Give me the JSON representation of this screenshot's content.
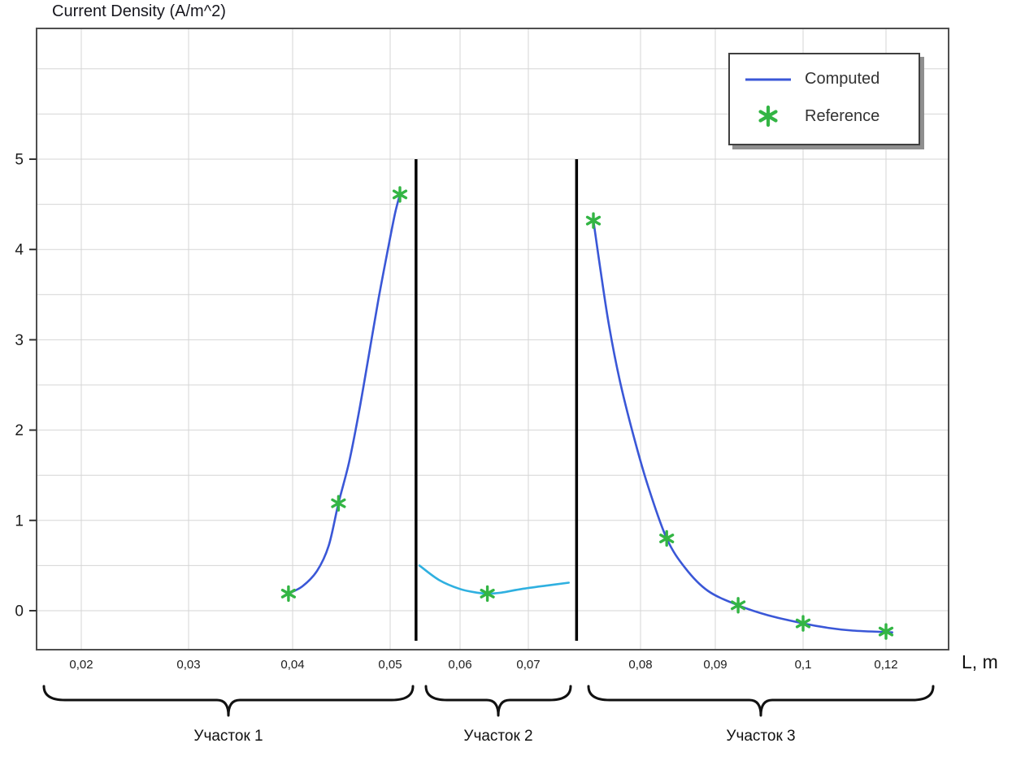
{
  "chart_data": {
    "type": "line",
    "title": "Current Density (A/m^2)",
    "xlabel": "L, m",
    "ylabel": "",
    "grid": true,
    "legend_position": "top-right",
    "legend_entries": [
      "Computed",
      "Reference"
    ],
    "y_ticks": [
      0,
      1,
      2,
      3,
      4,
      5
    ],
    "ylim": [
      -0.43,
      6.45
    ],
    "x_tick_labels": [
      "0,02",
      "0,03",
      "0,04",
      "0,05",
      "0,06",
      "0,07",
      "0,08",
      "0,09",
      "0,1",
      "0,12"
    ],
    "x_tick_values": [
      0.02,
      0.03,
      0.04,
      0.05,
      0.06,
      0.07,
      0.08,
      0.09,
      0.1,
      0.12
    ],
    "section_dividers_x": [
      0.0537,
      0.0743
    ],
    "sections": [
      {
        "label": "Участок 1"
      },
      {
        "label": "Участок 2"
      },
      {
        "label": "Участок 3"
      }
    ],
    "series": [
      {
        "name": "Computed",
        "section": "Участок 1",
        "type": "line",
        "color": "#3a57d7",
        "points": [
          [
            0.0396,
            0.19
          ],
          [
            0.041,
            0.27
          ],
          [
            0.0425,
            0.44
          ],
          [
            0.0437,
            0.72
          ],
          [
            0.0447,
            1.19
          ],
          [
            0.0458,
            1.65
          ],
          [
            0.0468,
            2.2
          ],
          [
            0.0478,
            2.82
          ],
          [
            0.0488,
            3.45
          ],
          [
            0.0498,
            4.02
          ],
          [
            0.0507,
            4.4
          ],
          [
            0.0514,
            4.61
          ]
        ]
      },
      {
        "name": "Computed",
        "section": "Участок 2",
        "type": "line",
        "color": "#2fb0e0",
        "points": [
          [
            0.0542,
            0.5
          ],
          [
            0.057,
            0.34
          ],
          [
            0.06,
            0.24
          ],
          [
            0.0625,
            0.2
          ],
          [
            0.064,
            0.19
          ],
          [
            0.066,
            0.2
          ],
          [
            0.069,
            0.24
          ],
          [
            0.0717,
            0.28
          ],
          [
            0.0736,
            0.31
          ]
        ]
      },
      {
        "name": "Computed",
        "section": "Участок 3",
        "type": "line",
        "color": "#3a57d7",
        "points": [
          [
            0.0758,
            4.32
          ],
          [
            0.0764,
            3.8
          ],
          [
            0.0772,
            3.15
          ],
          [
            0.0782,
            2.52
          ],
          [
            0.0795,
            1.88
          ],
          [
            0.081,
            1.38
          ],
          [
            0.0835,
            0.8
          ],
          [
            0.086,
            0.47
          ],
          [
            0.089,
            0.22
          ],
          [
            0.0926,
            0.06
          ],
          [
            0.096,
            -0.05
          ],
          [
            0.1,
            -0.14
          ],
          [
            0.106,
            -0.19
          ],
          [
            0.112,
            -0.22
          ],
          [
            0.1215,
            -0.24
          ]
        ]
      },
      {
        "name": "Reference",
        "type": "scatter",
        "marker": "asterisk",
        "color": "#33b544",
        "points": [
          [
            0.0396,
            0.19
          ],
          [
            0.0447,
            1.19
          ],
          [
            0.0514,
            4.61
          ],
          [
            0.064,
            0.19
          ],
          [
            0.0758,
            4.32
          ],
          [
            0.0835,
            0.8
          ],
          [
            0.0926,
            0.06
          ],
          [
            0.1,
            -0.14
          ],
          [
            0.12,
            -0.23
          ]
        ]
      }
    ],
    "colors": {
      "computed": "#3a57d7",
      "computed_section2": "#2fb0e0",
      "reference": "#33b544",
      "grid": "#d6d6d6",
      "axis": "#4f4f4f",
      "divider": "#000000",
      "brace": "#111111"
    }
  }
}
